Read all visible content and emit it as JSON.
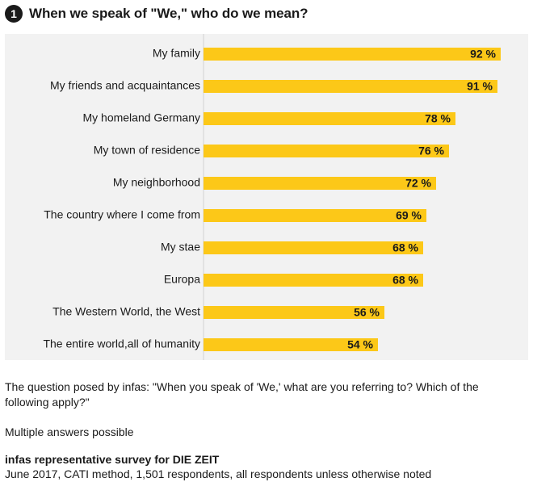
{
  "header": {
    "number": "1",
    "title": "When we speak of \"We,\" who do we mean?"
  },
  "colors": {
    "bar": "#fcc818",
    "panel": "#f2f2f2",
    "text": "#1a1a1a"
  },
  "chart_data": {
    "type": "bar",
    "orientation": "horizontal",
    "title": "When we speak of \"We,\" who do we mean?",
    "categories": [
      "My family",
      "My friends and acquaintances",
      "My homeland Germany",
      "My town of residence",
      "My neighborhood",
      "The country where I come from",
      "My stae",
      "Europa",
      "The Western World, the West",
      "The entire world,all of humanity"
    ],
    "values": [
      92,
      91,
      78,
      76,
      72,
      69,
      68,
      68,
      56,
      54
    ],
    "value_labels": [
      "92 %",
      "91 %",
      "78 %",
      "76 %",
      "72 %",
      "69 %",
      "68 %",
      "68 %",
      "56 %",
      "54 %"
    ],
    "unit": "%",
    "xlim": [
      0,
      100
    ],
    "xlabel": "",
    "ylabel": "",
    "grid": false
  },
  "notes": {
    "question": "The question posed by infas: \"When you speak of 'We,' what are you referring to? Which of the following apply?\"",
    "answers": "Multiple answers possible",
    "source_title": "infas representative survey for DIE ZEIT",
    "source_detail": "June 2017, CATI method, 1,501 respondents, all respondents unless otherwise noted"
  }
}
